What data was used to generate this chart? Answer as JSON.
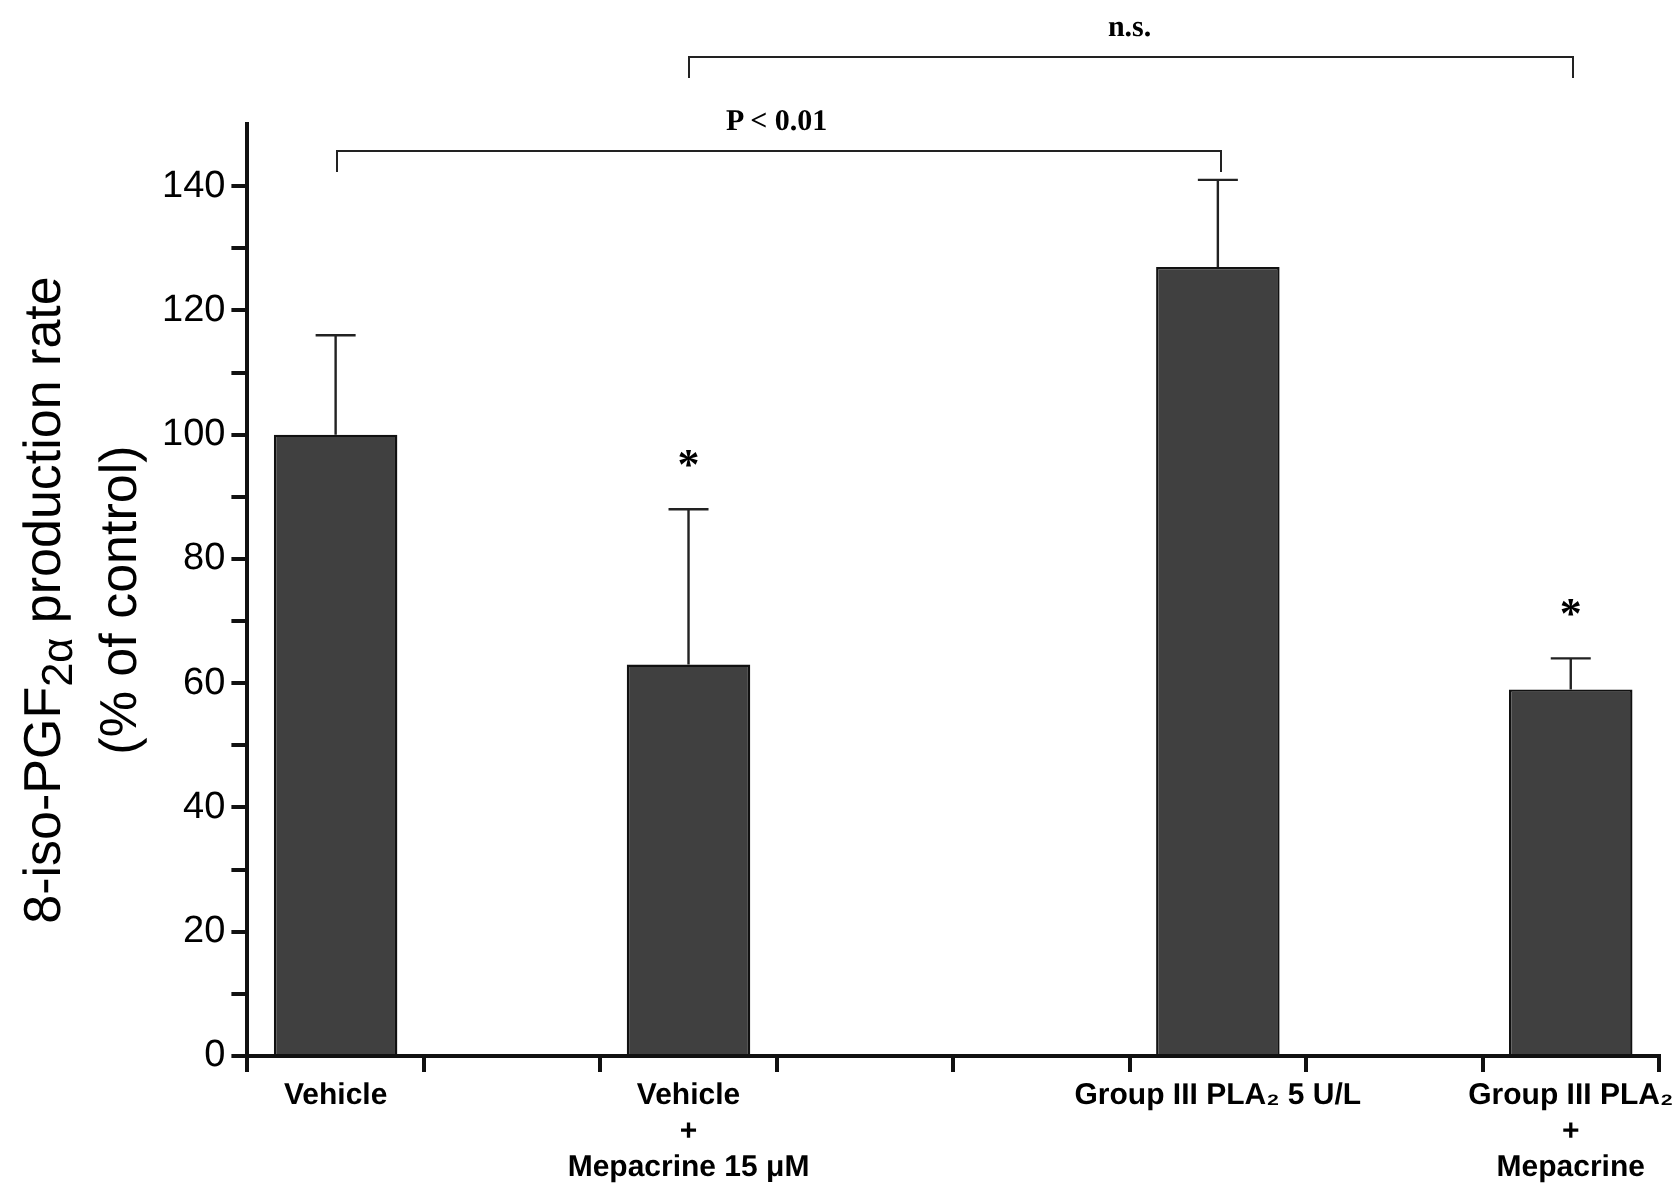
{
  "chart_data": {
    "type": "bar",
    "ylabel": "8-iso-PGF$_{2α}$ production rate\n(% of control)",
    "categories": [
      "Vehicle",
      null,
      "Vehicle\n+\nMepacrine 15 μM",
      null,
      null,
      "Group III PLA₂ 5 U/L",
      null,
      "Group III PLA₂\n+\nMepacrine"
    ],
    "values": [
      100,
      null,
      63,
      null,
      null,
      127,
      null,
      59
    ],
    "errors": [
      [
        100,
        116
      ],
      null,
      [
        63,
        88
      ],
      null,
      null,
      [
        127,
        141
      ],
      null,
      [
        59,
        64
      ]
    ],
    "color": "#404040",
    "ylim": [
      0,
      150
    ],
    "yticks": [
      0,
      {
        "value": 10,
        "label": null
      },
      20,
      {
        "value": 30,
        "label": null
      },
      40,
      {
        "value": 50,
        "label": null
      },
      60,
      {
        "value": 70,
        "label": null
      },
      80,
      {
        "value": 90,
        "label": null
      },
      100,
      {
        "value": 110,
        "label": null
      },
      120,
      {
        "value": 130,
        "label": null
      },
      140
    ],
    "grid": false,
    "legend": false,
    "annotations": [
      {
        "text": "*",
        "x": "Vehicle\n+\nMepacrine 15 μM",
        "y": 88
      },
      {
        "text": "*",
        "x": "Group III PLA₂\n+\nMepacrine",
        "y": 64
      },
      "P < 0.01",
      "n.s."
    ]
  }
}
